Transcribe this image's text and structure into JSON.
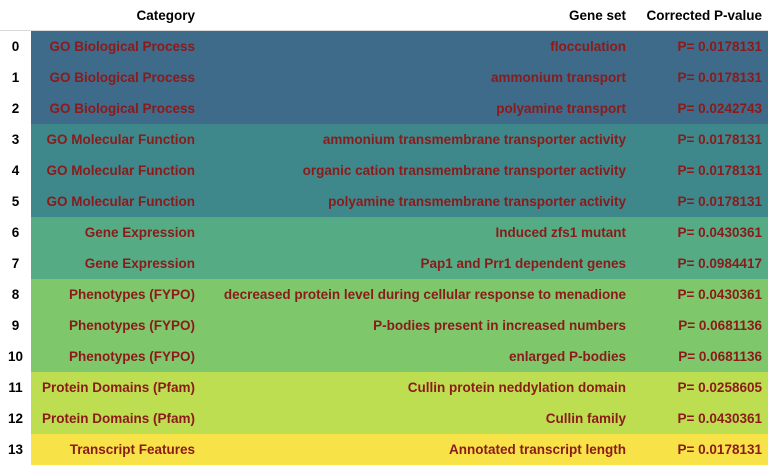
{
  "headers": {
    "index": "",
    "category": "Category",
    "gene_set": "Gene set",
    "p_value": "Corrected P-value"
  },
  "rows": [
    {
      "index": "0",
      "category": "GO Biological Process",
      "gene_set": "flocculation",
      "p_value": "P= 0.0178131",
      "color": "#3e6b8a"
    },
    {
      "index": "1",
      "category": "GO Biological Process",
      "gene_set": "ammonium transport",
      "p_value": "P= 0.0178131",
      "color": "#3e6b8a"
    },
    {
      "index": "2",
      "category": "GO Biological Process",
      "gene_set": "polyamine transport",
      "p_value": "P= 0.0242743",
      "color": "#3e6b8a"
    },
    {
      "index": "3",
      "category": "GO Molecular Function",
      "gene_set": "ammonium transmembrane transporter activity",
      "p_value": "P= 0.0178131",
      "color": "#3e888c"
    },
    {
      "index": "4",
      "category": "GO Molecular Function",
      "gene_set": "organic cation transmembrane transporter activity",
      "p_value": "P= 0.0178131",
      "color": "#3e888c"
    },
    {
      "index": "5",
      "category": "GO Molecular Function",
      "gene_set": "polyamine transmembrane transporter activity",
      "p_value": "P= 0.0178131",
      "color": "#3e888c"
    },
    {
      "index": "6",
      "category": "Gene Expression",
      "gene_set": "Induced zfs1 mutant",
      "p_value": "P= 0.0430361",
      "color": "#55ac84"
    },
    {
      "index": "7",
      "category": "Gene Expression",
      "gene_set": "Pap1 and Prr1 dependent genes",
      "p_value": "P= 0.0984417",
      "color": "#55ac84"
    },
    {
      "index": "8",
      "category": "Phenotypes (FYPO)",
      "gene_set": "decreased protein level during cellular response to menadione",
      "p_value": "P= 0.0430361",
      "color": "#7ec76b"
    },
    {
      "index": "9",
      "category": "Phenotypes (FYPO)",
      "gene_set": "P-bodies present in increased numbers",
      "p_value": "P= 0.0681136",
      "color": "#7ec76b"
    },
    {
      "index": "10",
      "category": "Phenotypes (FYPO)",
      "gene_set": "enlarged P-bodies",
      "p_value": "P= 0.0681136",
      "color": "#7ec76b"
    },
    {
      "index": "11",
      "category": "Protein Domains (Pfam)",
      "gene_set": "Cullin protein neddylation domain",
      "p_value": "P= 0.0258605",
      "color": "#bede52"
    },
    {
      "index": "12",
      "category": "Protein Domains (Pfam)",
      "gene_set": "Cullin family",
      "p_value": "P= 0.0430361",
      "color": "#bede52"
    },
    {
      "index": "13",
      "category": "Transcript Features",
      "gene_set": "Annotated transcript length",
      "p_value": "P= 0.0178131",
      "color": "#f7e248"
    }
  ]
}
